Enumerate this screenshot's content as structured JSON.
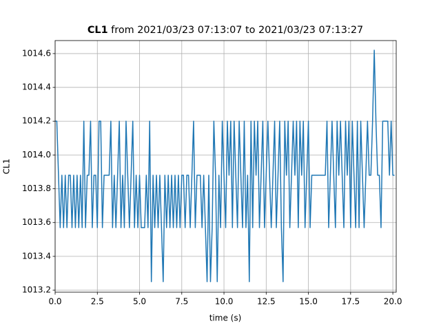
{
  "chart_data": {
    "type": "line",
    "title_parts": [
      "CL1",
      "from 2021/03/23 07:13:07 to 2021/03/23 07:13:27"
    ],
    "xlabel": "time (s)",
    "ylabel": "CL1",
    "color": "#1f77b4",
    "grid": true,
    "xlim": [
      0,
      20.2
    ],
    "ylim": [
      1013.188,
      1014.677
    ],
    "xticks": [
      {
        "value": 0,
        "label": "0.0"
      },
      2.5,
      {
        "value": 5,
        "label": "5.0"
      },
      7.5,
      {
        "value": 10,
        "label": "10.0"
      },
      12.5,
      {
        "value": 15,
        "label": "15.0"
      },
      17.5,
      {
        "value": 20,
        "label": "20.0"
      }
    ],
    "yticks": [
      1013.2,
      1013.4,
      1013.6,
      1013.8,
      {
        "value": 1014,
        "label": "1014.0"
      },
      1014.2,
      1014.4,
      1014.6
    ],
    "x": [
      0,
      0.1,
      0.2,
      0.3,
      0.4,
      0.5,
      0.6,
      0.7,
      0.8,
      0.9,
      1,
      1.1,
      1.2,
      1.3,
      1.4,
      1.5,
      1.6,
      1.7,
      1.8,
      1.9,
      2,
      2.1,
      2.2,
      2.3,
      2.4,
      2.5,
      2.6,
      2.7,
      2.8,
      2.9,
      3,
      3.1,
      3.2,
      3.3,
      3.4,
      3.5,
      3.6,
      3.7,
      3.8,
      3.9,
      4,
      4.1,
      4.2,
      4.3,
      4.4,
      4.5,
      4.6,
      4.7,
      4.8,
      4.9,
      5,
      5.1,
      5.2,
      5.3,
      5.4,
      5.5,
      5.6,
      5.7,
      5.8,
      5.9,
      6,
      6.1,
      6.2,
      6.3,
      6.4,
      6.5,
      6.6,
      6.7,
      6.8,
      6.9,
      7,
      7.1,
      7.2,
      7.3,
      7.4,
      7.5,
      7.6,
      7.7,
      7.8,
      7.9,
      8,
      8.1,
      8.2,
      8.3,
      8.4,
      8.5,
      8.6,
      8.7,
      8.8,
      8.9,
      9,
      9.1,
      9.2,
      9.3,
      9.4,
      9.5,
      9.6,
      9.7,
      9.8,
      9.9,
      10,
      10.1,
      10.2,
      10.3,
      10.4,
      10.5,
      10.6,
      10.7,
      10.8,
      10.9,
      11,
      11.1,
      11.2,
      11.3,
      11.4,
      11.5,
      11.6,
      11.7,
      11.8,
      11.9,
      12,
      12.1,
      12.2,
      12.3,
      12.4,
      12.5,
      12.6,
      12.7,
      12.8,
      12.9,
      13,
      13.1,
      13.2,
      13.3,
      13.4,
      13.5,
      13.6,
      13.7,
      13.8,
      13.9,
      14,
      14.1,
      14.2,
      14.3,
      14.4,
      14.5,
      14.6,
      14.7,
      14.8,
      14.9,
      15,
      15.1,
      15.2,
      15.3,
      15.4,
      15.5,
      15.6,
      15.7,
      15.8,
      15.9,
      16,
      16.1,
      16.2,
      16.3,
      16.4,
      16.5,
      16.6,
      16.7,
      16.8,
      16.9,
      17,
      17.1,
      17.2,
      17.3,
      17.4,
      17.5,
      17.6,
      17.7,
      17.8,
      17.9,
      18,
      18.1,
      18.2,
      18.3,
      18.4,
      18.5,
      18.6,
      18.7,
      18.8,
      18.9,
      19,
      19.1,
      19.2,
      19.3,
      19.4,
      19.5,
      19.6,
      19.7,
      19.8,
      19.9,
      20,
      20.1
    ],
    "series": [
      {
        "values": [
          1014.2,
          1014.2,
          1013.88,
          1013.57,
          1013.88,
          1013.57,
          1013.88,
          1013.57,
          1013.88,
          1013.88,
          1013.57,
          1013.88,
          1013.57,
          1013.88,
          1013.57,
          1013.88,
          1013.57,
          1014.2,
          1013.57,
          1013.88,
          1013.88,
          1014.2,
          1013.57,
          1013.88,
          1013.88,
          1013.57,
          1014.2,
          1014.2,
          1013.57,
          1013.88,
          1013.88,
          1013.88,
          1013.88,
          1014.2,
          1013.57,
          1013.88,
          1013.57,
          1013.88,
          1014.2,
          1013.57,
          1013.88,
          1013.57,
          1014.2,
          1013.88,
          1013.57,
          1013.88,
          1014.2,
          1013.57,
          1013.88,
          1013.57,
          1013.88,
          1013.57,
          1013.57,
          1013.57,
          1013.88,
          1013.57,
          1014.2,
          1013.25,
          1013.88,
          1013.57,
          1013.88,
          1013.57,
          1013.88,
          1013.57,
          1013.25,
          1013.88,
          1013.57,
          1013.88,
          1013.57,
          1013.88,
          1013.57,
          1013.88,
          1013.57,
          1013.88,
          1013.57,
          1013.88,
          1013.88,
          1013.57,
          1013.88,
          1013.88,
          1013.57,
          1013.88,
          1014.2,
          1013.57,
          1013.88,
          1013.88,
          1013.88,
          1013.57,
          1013.88,
          1013.57,
          1013.25,
          1013.88,
          1013.25,
          1013.57,
          1014.2,
          1013.88,
          1013.25,
          1013.88,
          1013.57,
          1014.2,
          1013.88,
          1013.57,
          1014.2,
          1013.88,
          1014.2,
          1013.57,
          1014.2,
          1013.88,
          1013.57,
          1014.2,
          1013.88,
          1013.57,
          1014.2,
          1013.57,
          1013.88,
          1013.25,
          1014.2,
          1013.57,
          1014.2,
          1013.88,
          1014.2,
          1013.57,
          1013.88,
          1014.2,
          1013.57,
          1013.88,
          1014.2,
          1013.88,
          1013.57,
          1013.88,
          1014.2,
          1013.57,
          1013.88,
          1014.2,
          1013.57,
          1013.25,
          1014.2,
          1013.88,
          1014.2,
          1013.57,
          1013.88,
          1014.2,
          1013.88,
          1014.2,
          1013.57,
          1014.2,
          1013.88,
          1014.2,
          1013.57,
          1013.88,
          1014.2,
          1013.57,
          1013.88,
          1013.88,
          1013.88,
          1013.88,
          1013.88,
          1013.88,
          1013.88,
          1013.88,
          1013.88,
          1014.2,
          1013.57,
          1013.88,
          1014.2,
          1013.88,
          1013.57,
          1014.2,
          1013.88,
          1014.2,
          1013.88,
          1013.57,
          1014.2,
          1013.88,
          1014.2,
          1013.57,
          1014.2,
          1013.88,
          1013.57,
          1014.2,
          1013.57,
          1014.2,
          1013.88,
          1013.57,
          1013.88,
          1014.2,
          1013.88,
          1013.88,
          1014.2,
          1014.62,
          1014.2,
          1013.88,
          1013.88,
          1013.57,
          1014.2,
          1014.2,
          1014.2,
          1014.2,
          1013.88,
          1014.2,
          1013.88,
          1013.88
        ]
      }
    ]
  }
}
